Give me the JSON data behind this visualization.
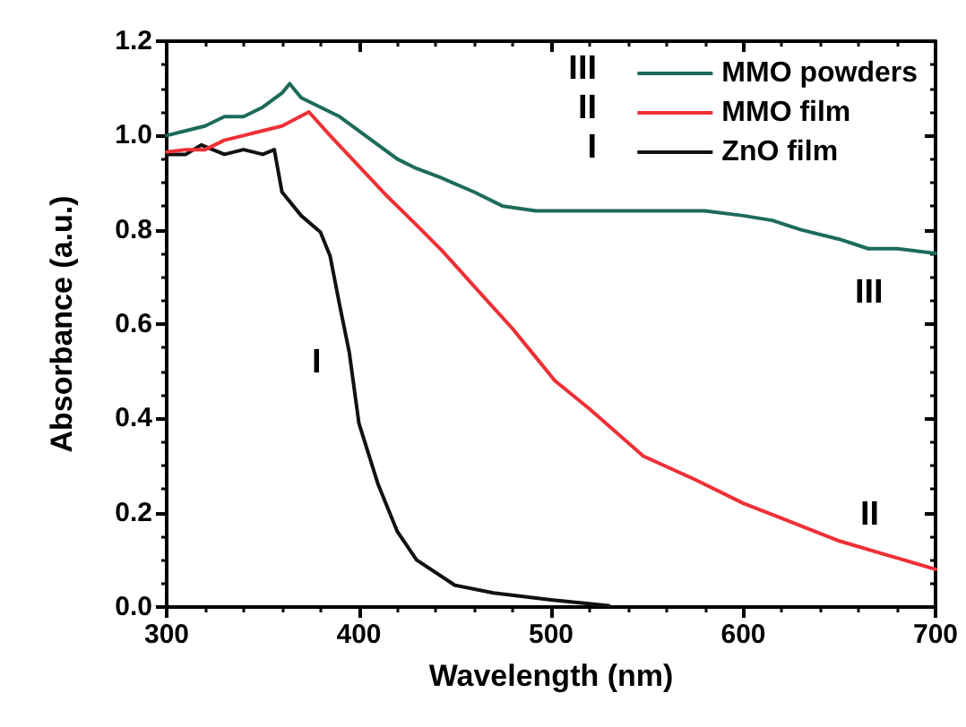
{
  "chart_data": {
    "type": "line",
    "xlabel": "Wavelength (nm)",
    "ylabel": "Absorbance (a.u.)",
    "xlim": [
      300,
      700
    ],
    "xticks": [
      300,
      400,
      500,
      600,
      700
    ],
    "ylim": [
      0,
      1.2
    ],
    "yticks": [
      {
        "value": 0,
        "label": "0.0"
      },
      0.2,
      0.4,
      0.6,
      0.8,
      {
        "value": 1,
        "label": "1.0"
      },
      1.2
    ],
    "legend": "top right",
    "grid": false,
    "marker": "none",
    "line_style": "solid",
    "annotations": [
      "III",
      "II",
      "I",
      "III",
      "II",
      "I"
    ],
    "series": [
      {
        "name": "MMO powders",
        "color": "#1d6b5a",
        "x": [
          300,
          310,
          320,
          330,
          340,
          350,
          360,
          364,
          370,
          380,
          390,
          400,
          410,
          420,
          430,
          443,
          460,
          475,
          492,
          520,
          550,
          580,
          600,
          615,
          630,
          650,
          665,
          680,
          700
        ],
        "values": [
          1.0,
          1.01,
          1.02,
          1.04,
          1.04,
          1.06,
          1.09,
          1.11,
          1.08,
          1.06,
          1.04,
          1.01,
          0.98,
          0.95,
          0.93,
          0.91,
          0.88,
          0.85,
          0.84,
          0.84,
          0.84,
          0.84,
          0.83,
          0.82,
          0.8,
          0.78,
          0.76,
          0.76,
          0.75
        ]
      },
      {
        "name": "MMO film",
        "color": "#ee3036",
        "x": [
          300,
          310,
          320,
          330,
          340,
          350,
          360,
          374,
          385,
          400,
          415,
          430,
          443,
          460,
          480,
          492,
          502,
          520,
          548,
          575,
          600,
          625,
          650,
          675,
          700
        ],
        "values": [
          0.965,
          0.97,
          0.97,
          0.99,
          1.0,
          1.01,
          1.02,
          1.05,
          1.0,
          0.935,
          0.87,
          0.81,
          0.757,
          0.68,
          0.59,
          0.53,
          0.48,
          0.42,
          0.32,
          0.27,
          0.22,
          0.18,
          0.14,
          0.11,
          0.08
        ]
      },
      {
        "name": "ZnO film",
        "color": "#111111",
        "x": [
          300,
          310,
          318,
          330,
          340,
          350,
          356,
          360,
          370,
          380,
          385,
          390,
          395,
          400,
          410,
          420,
          430,
          450,
          470,
          500,
          530
        ],
        "values": [
          0.96,
          0.96,
          0.98,
          0.96,
          0.97,
          0.96,
          0.97,
          0.88,
          0.83,
          0.795,
          0.745,
          0.64,
          0.54,
          0.39,
          0.26,
          0.16,
          0.1,
          0.046,
          0.03,
          0.015,
          0.003
        ]
      }
    ]
  }
}
